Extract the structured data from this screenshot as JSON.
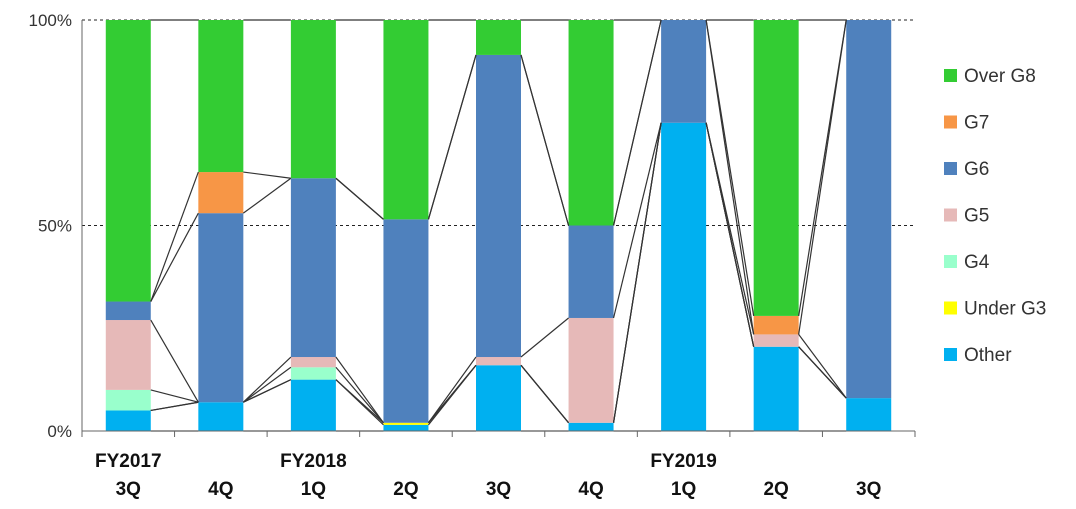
{
  "chart_data": {
    "type": "bar",
    "stacked": true,
    "normalized": true,
    "title": "",
    "xlabel": "",
    "ylabel": "",
    "ylim": [
      0,
      100
    ],
    "y_ticks": [
      "0%",
      "50%",
      "100%"
    ],
    "grid": "dashed horizontal at 50% and 100%",
    "legend_position": "right",
    "connector_lines": true,
    "categories": [
      {
        "line1": "FY2017",
        "line2": "3Q"
      },
      {
        "line1": "",
        "line2": "4Q"
      },
      {
        "line1": "FY2018",
        "line2": "1Q"
      },
      {
        "line1": "",
        "line2": "2Q"
      },
      {
        "line1": "",
        "line2": "3Q"
      },
      {
        "line1": "",
        "line2": "4Q"
      },
      {
        "line1": "FY2019",
        "line2": "1Q"
      },
      {
        "line1": "",
        "line2": "2Q"
      },
      {
        "line1": "",
        "line2": "3Q"
      }
    ],
    "series": [
      {
        "name": "Other",
        "color": "#00b0f0",
        "values": [
          5,
          7,
          12.5,
          1.5,
          16,
          2,
          75,
          20.5,
          8
        ]
      },
      {
        "name": "Under G3",
        "color": "#ffff00",
        "values": [
          0,
          0,
          0,
          0.5,
          0,
          0,
          0,
          0,
          0
        ]
      },
      {
        "name": "G4",
        "color": "#99ffcc",
        "values": [
          5,
          0,
          3,
          0,
          0,
          0,
          0,
          0,
          0
        ]
      },
      {
        "name": "G5",
        "color": "#e6b9b8",
        "values": [
          17,
          0,
          2.5,
          0,
          2,
          25.5,
          0,
          3,
          0
        ]
      },
      {
        "name": "G6",
        "color": "#4f81bd",
        "values": [
          4.5,
          46,
          43.5,
          49.5,
          73.5,
          22.5,
          25,
          0,
          92
        ]
      },
      {
        "name": "G7",
        "color": "#f79646",
        "values": [
          0,
          10,
          0,
          0,
          0,
          0,
          0,
          4.5,
          0
        ]
      },
      {
        "name": "Over G8",
        "color": "#33cc33",
        "values": [
          68.5,
          37,
          38.5,
          48.5,
          8.5,
          50,
          0,
          72,
          0
        ]
      }
    ],
    "legend_order": [
      "Over G8",
      "G7",
      "G6",
      "G5",
      "G4",
      "Under G3",
      "Other"
    ]
  }
}
